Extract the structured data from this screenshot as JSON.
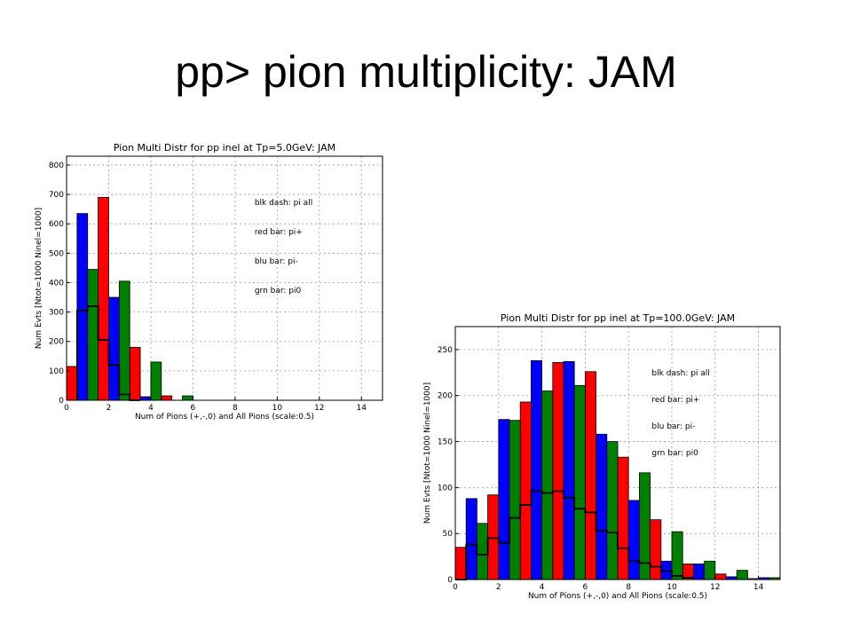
{
  "slide": {
    "title": "pp> pion multiplicity: JAM"
  },
  "chart_data": [
    {
      "type": "bar",
      "title": "Pion Multi Distr for pp inel at Tp=5.0GeV: JAM",
      "xlabel": "Num of Pions (+,-,0) and All Pions (scale:0.5)",
      "ylabel": "Num Evts [Ntot=1000 Ninel=1000]",
      "xlim": [
        0,
        15
      ],
      "ylim": [
        0,
        830
      ],
      "xticks": [
        0,
        2,
        4,
        6,
        8,
        10,
        12,
        14
      ],
      "yticks": [
        0,
        100,
        200,
        300,
        400,
        500,
        600,
        700,
        800
      ],
      "grid": true,
      "legend_text": [
        "blk dash: pi all",
        "red bar: pi+",
        "blu bar: pi-",
        "grn bar: pi0"
      ],
      "series": [
        {
          "name": "red bar: pi+",
          "color": "#ff0000",
          "x": [
            0,
            1,
            2,
            3
          ],
          "values": [
            115,
            690,
            180,
            15
          ]
        },
        {
          "name": "blu bar: pi-",
          "color": "#0000ff",
          "x": [
            0,
            1,
            2,
            3
          ],
          "values": [
            635,
            350,
            12,
            0
          ]
        },
        {
          "name": "grn bar: pi0",
          "color": "#008000",
          "x": [
            0,
            1,
            2,
            3
          ],
          "values": [
            445,
            405,
            130,
            15
          ]
        },
        {
          "name": "blk dash: pi all",
          "color": "#000000",
          "type": "step",
          "x": [
            0.5,
            1.0,
            1.5,
            2.0,
            2.5,
            3.0
          ],
          "values": [
            305,
            320,
            205,
            120,
            20,
            0
          ]
        }
      ]
    },
    {
      "type": "bar",
      "title": "Pion Multi Distr for pp inel at Tp=100.0GeV: JAM",
      "xlabel": "Num of Pions (+,-,0) and All Pions (scale:0.5)",
      "ylabel": "Num Evts [Ntot=1000 Ninel=1000]",
      "xlim": [
        0,
        15
      ],
      "ylim": [
        0,
        275
      ],
      "xticks": [
        0,
        2,
        4,
        6,
        8,
        10,
        12,
        14
      ],
      "yticks": [
        0,
        50,
        100,
        150,
        200,
        250
      ],
      "grid": true,
      "legend_text": [
        "blk dash: pi all",
        "red bar: pi+",
        "blu bar: pi-",
        "grn bar: pi0"
      ],
      "series": [
        {
          "name": "red bar: pi+",
          "color": "#ff0000",
          "x": [
            0,
            1,
            2,
            3,
            4,
            5,
            6,
            7,
            8,
            9
          ],
          "values": [
            35,
            92,
            193,
            236,
            226,
            133,
            65,
            17,
            6,
            1
          ]
        },
        {
          "name": "blu bar: pi-",
          "color": "#0000ff",
          "x": [
            0,
            1,
            2,
            3,
            4,
            5,
            6,
            7,
            8,
            9
          ],
          "values": [
            88,
            174,
            238,
            237,
            158,
            86,
            20,
            17,
            3,
            2
          ]
        },
        {
          "name": "grn bar: pi0",
          "color": "#008000",
          "x": [
            0,
            1,
            2,
            3,
            4,
            5,
            6,
            7,
            8,
            9
          ],
          "values": [
            61,
            173,
            205,
            211,
            150,
            116,
            52,
            20,
            10,
            2
          ]
        },
        {
          "name": "blk dash: pi all",
          "color": "#000000",
          "type": "step",
          "x": [
            0,
            0.5,
            1,
            1.5,
            2,
            2.5,
            3,
            3.5,
            4,
            4.5,
            5,
            5.5,
            6,
            6.5,
            7,
            7.5,
            8,
            8.5,
            9,
            9.5,
            10,
            10.5
          ],
          "values": [
            0,
            38,
            27,
            45,
            40,
            67,
            81,
            96,
            94,
            96,
            89,
            77,
            73,
            53,
            51,
            34,
            20,
            18,
            14,
            9,
            4,
            2
          ]
        }
      ]
    }
  ]
}
